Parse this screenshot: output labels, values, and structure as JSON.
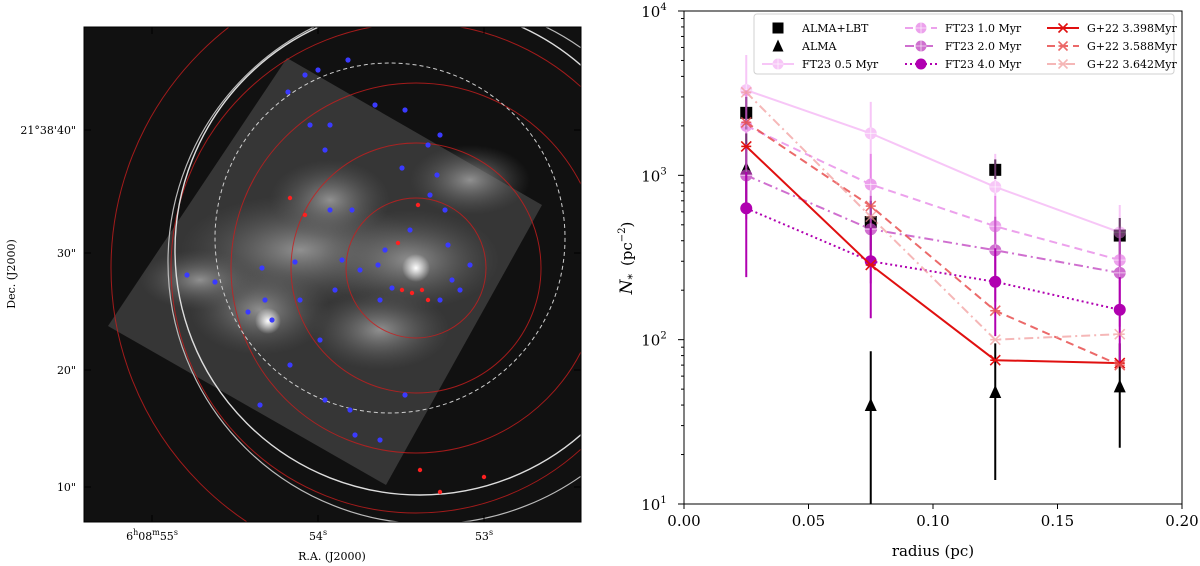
{
  "left_panel": {
    "xlabel": "R.A. (J2000)",
    "ylabel": "Dec. (J2000)",
    "dec_ticks": [
      "21°38'40\"",
      "30\"",
      "20\"",
      "10\""
    ],
    "ra_ticks": [
      {
        "h": "6",
        "hs": "h",
        "m": "08",
        "ms": "m",
        "s": "55",
        "ss": "s"
      },
      {
        "h": "",
        "hs": "",
        "m": "",
        "ms": "",
        "s": "54",
        "ss": "s"
      },
      {
        "h": "",
        "hs": "",
        "m": "",
        "ms": "",
        "s": "53",
        "ss": "s"
      }
    ],
    "colors": {
      "background": "#111111",
      "red_source": "#ff2020",
      "blue_source": "#3a3aff",
      "ring": "#c81e1e"
    }
  },
  "chart_data": {
    "type": "line",
    "xlabel": "radius (pc)",
    "ylabel_main": "N",
    "ylabel_sub": "*",
    "ylabel_unit": "(pc",
    "ylabel_exp": "−2",
    "ylabel_close": ")",
    "xlim": [
      0.0,
      0.2
    ],
    "ylim_log": [
      1,
      4
    ],
    "xticks": [
      "0.00",
      "0.05",
      "0.10",
      "0.15",
      "0.20"
    ],
    "yticks": [
      {
        "base": "10",
        "exp": "1"
      },
      {
        "base": "10",
        "exp": "2"
      },
      {
        "base": "10",
        "exp": "3"
      },
      {
        "base": "10",
        "exp": "4"
      }
    ],
    "x": [
      0.025,
      0.075,
      0.125,
      0.175
    ],
    "series": [
      {
        "name": "ALMA+LBT",
        "values": [
          2400,
          520,
          1080,
          430
        ],
        "err_lo": [
          1900,
          350,
          950,
          330
        ],
        "err_hi": [
          3000,
          700,
          1250,
          550
        ],
        "color": "#000000",
        "marker": "square",
        "line": "none",
        "opacity": 1
      },
      {
        "name": "ALMA",
        "values": [
          1100,
          40,
          48,
          52
        ],
        "err_lo": [
          650,
          10,
          14,
          22
        ],
        "err_hi": [
          1800,
          85,
          95,
          95
        ],
        "color": "#000000",
        "marker": "triangle",
        "line": "none",
        "opacity": 1
      },
      {
        "name": "FT23 0.5 Myr",
        "values": [
          3300,
          1800,
          850,
          450
        ],
        "err_lo": [
          1800,
          900,
          400,
          220
        ],
        "err_hi": [
          5400,
          2800,
          1350,
          660
        ],
        "color": "#ee82ee",
        "marker": "plus",
        "line": "solid",
        "opacity": 0.45
      },
      {
        "name": "FT23 1.0 Myr",
        "values": [
          2000,
          880,
          490,
          305
        ],
        "err_lo": [
          1100,
          450,
          230,
          150
        ],
        "err_hi": [
          3300,
          1350,
          750,
          480
        ],
        "color": "#dd55dd",
        "marker": "plus",
        "line": "dashed",
        "opacity": 0.55
      },
      {
        "name": "FT23 2.0 Myr",
        "values": [
          1000,
          470,
          350,
          255
        ],
        "err_lo": [
          540,
          220,
          170,
          120
        ],
        "err_hi": [
          1550,
          750,
          560,
          400
        ],
        "color": "#c040c0",
        "marker": "plus",
        "line": "dashdot",
        "opacity": 0.75
      },
      {
        "name": "FT23 4.0 Myr",
        "values": [
          630,
          300,
          225,
          152
        ],
        "err_lo": [
          240,
          135,
          105,
          70
        ],
        "err_hi": [
          1050,
          480,
          360,
          240
        ],
        "color": "#b000b0",
        "marker": "circle",
        "line": "dotted",
        "opacity": 1
      },
      {
        "name": "G+22 3.398Myr",
        "values": [
          1500,
          285,
          75,
          72
        ],
        "color": "#e01010",
        "marker": "star",
        "line": "solid",
        "opacity": 1
      },
      {
        "name": "G+22 3.588Myr",
        "values": [
          2100,
          650,
          150,
          70
        ],
        "color": "#e85050",
        "marker": "star",
        "line": "dashed",
        "opacity": 0.85
      },
      {
        "name": "G+22 3.642Myr",
        "values": [
          3200,
          560,
          100,
          108
        ],
        "color": "#f29a9a",
        "marker": "star",
        "line": "dashdot",
        "opacity": 0.7
      }
    ],
    "legend_position": "top"
  }
}
